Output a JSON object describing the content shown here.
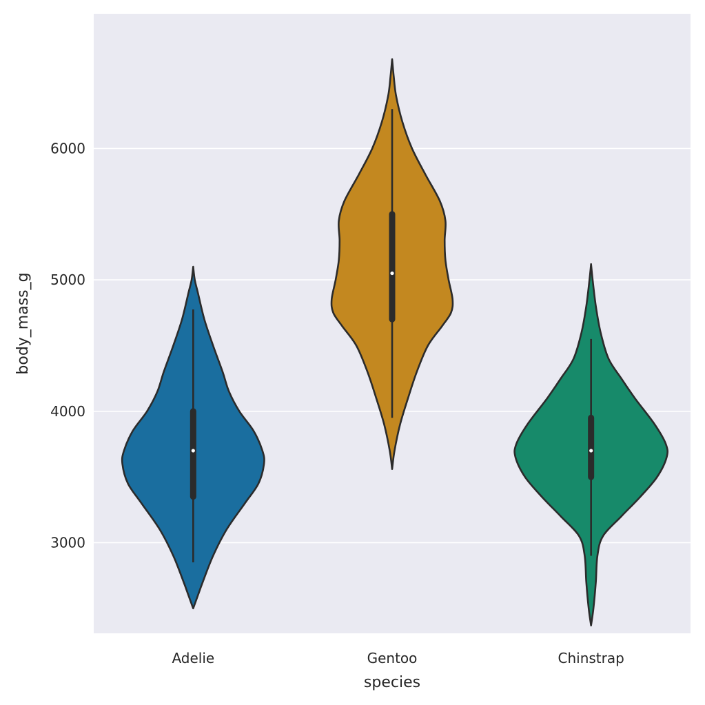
{
  "chart_data": {
    "type": "violin",
    "xlabel": "species",
    "ylabel": "body_mass_g",
    "ylim": [
      2310,
      7025
    ],
    "yticks": [
      3000,
      4000,
      5000,
      6000
    ],
    "grid": true,
    "background_color": "#eaeaf2",
    "categories": [
      "Adelie",
      "Gentoo",
      "Chinstrap"
    ],
    "series": [
      {
        "category": "Adelie",
        "color": "#1a6e9f",
        "range": [
          2500,
          5100
        ],
        "whisker": [
          2850,
          4775
        ],
        "q1": 3350,
        "median": 3700,
        "q3": 4000,
        "density": [
          [
            2500,
            0.0
          ],
          [
            2600,
            0.06
          ],
          [
            2700,
            0.12
          ],
          [
            2900,
            0.25
          ],
          [
            3100,
            0.42
          ],
          [
            3300,
            0.65
          ],
          [
            3450,
            0.82
          ],
          [
            3600,
            0.89
          ],
          [
            3700,
            0.87
          ],
          [
            3850,
            0.76
          ],
          [
            4000,
            0.58
          ],
          [
            4150,
            0.45
          ],
          [
            4300,
            0.37
          ],
          [
            4500,
            0.25
          ],
          [
            4700,
            0.14
          ],
          [
            4900,
            0.06
          ],
          [
            5000,
            0.02
          ],
          [
            5100,
            0.0
          ]
        ]
      },
      {
        "category": "Gentoo",
        "color": "#c38820",
        "range": [
          3560,
          6680
        ],
        "whisker": [
          3950,
          6300
        ],
        "q1": 4700,
        "median": 5050,
        "q3": 5500,
        "density": [
          [
            3560,
            0.0
          ],
          [
            3700,
            0.03
          ],
          [
            3900,
            0.1
          ],
          [
            4100,
            0.2
          ],
          [
            4300,
            0.31
          ],
          [
            4500,
            0.45
          ],
          [
            4650,
            0.63
          ],
          [
            4750,
            0.74
          ],
          [
            4850,
            0.76
          ],
          [
            5000,
            0.71
          ],
          [
            5150,
            0.67
          ],
          [
            5300,
            0.66
          ],
          [
            5450,
            0.67
          ],
          [
            5600,
            0.6
          ],
          [
            5800,
            0.42
          ],
          [
            6000,
            0.25
          ],
          [
            6200,
            0.13
          ],
          [
            6400,
            0.05
          ],
          [
            6550,
            0.02
          ],
          [
            6680,
            0.0
          ]
        ]
      },
      {
        "category": "Chinstrap",
        "color": "#178a6a",
        "range": [
          2370,
          5120
        ],
        "whisker": [
          2900,
          4550
        ],
        "q1": 3500,
        "median": 3700,
        "q3": 3950,
        "density": [
          [
            2370,
            0.0
          ],
          [
            2500,
            0.03
          ],
          [
            2700,
            0.06
          ],
          [
            2900,
            0.08
          ],
          [
            3050,
            0.15
          ],
          [
            3200,
            0.38
          ],
          [
            3350,
            0.62
          ],
          [
            3500,
            0.83
          ],
          [
            3650,
            0.95
          ],
          [
            3750,
            0.94
          ],
          [
            3900,
            0.8
          ],
          [
            4100,
            0.55
          ],
          [
            4250,
            0.38
          ],
          [
            4400,
            0.22
          ],
          [
            4600,
            0.12
          ],
          [
            4800,
            0.06
          ],
          [
            5000,
            0.02
          ],
          [
            5120,
            0.0
          ]
        ]
      }
    ]
  }
}
